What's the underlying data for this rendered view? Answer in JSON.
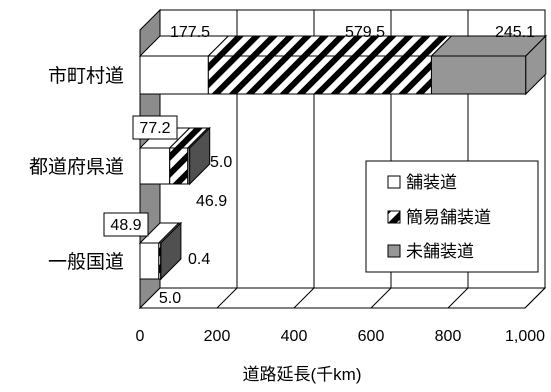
{
  "chart_data": {
    "type": "bar",
    "orientation": "horizontal",
    "stacked": true,
    "three_d": true,
    "categories": [
      "市町村道",
      "都道府県道",
      "一般国道"
    ],
    "series": [
      {
        "name": "舗装道",
        "values": [
          177.5,
          77.2,
          48.9
        ],
        "color": "#ffffff",
        "pattern": "solid"
      },
      {
        "name": "簡易舗装道",
        "values": [
          579.5,
          46.9,
          5.0
        ],
        "color": "#000000",
        "pattern": "diagonal-stripes"
      },
      {
        "name": "未舗装道",
        "values": [
          245.1,
          5.0,
          0.4
        ],
        "color": "#969696",
        "pattern": "solid"
      }
    ],
    "data_labels": {
      "市町村道": [
        "177.5",
        "579.5",
        "245.1"
      ],
      "都道府県道": [
        "77.2",
        "46.9",
        "5.0"
      ],
      "一般国道": [
        "48.9",
        "5.0",
        "0.4"
      ]
    },
    "xlabel": "道路延長(千km)",
    "ylabel": "",
    "xlim": [
      0,
      1000
    ],
    "xticks": [
      0,
      200,
      400,
      600,
      800,
      1000
    ],
    "xtick_labels": [
      "0",
      "200",
      "400",
      "600",
      "800",
      "1,000"
    ],
    "grid": true,
    "legend_position": "right"
  }
}
